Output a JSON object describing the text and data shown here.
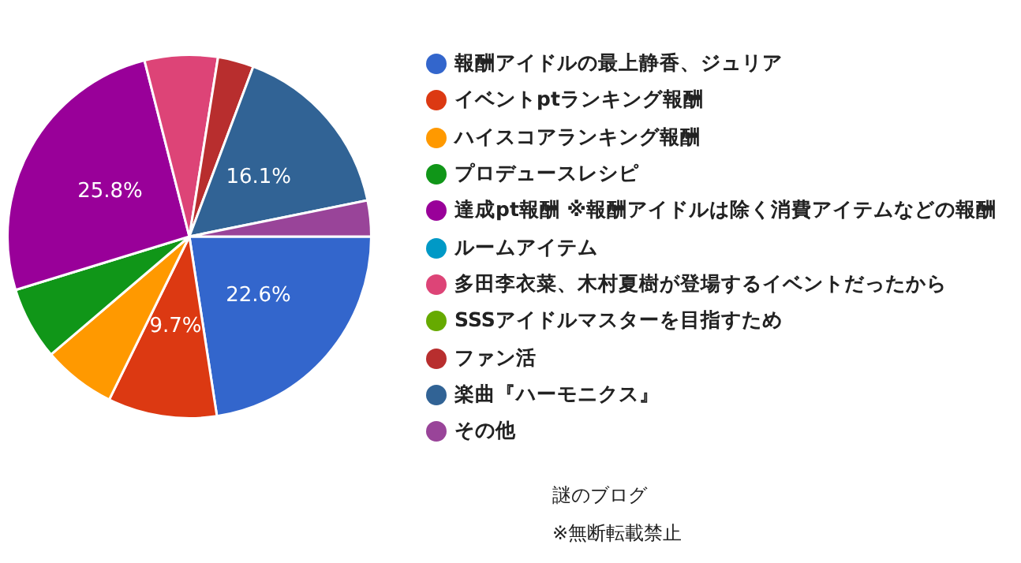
{
  "chart_data": {
    "type": "pie",
    "categories": [
      "報酬アイドルの最上静香、ジュリア",
      "イベントptランキング報酬",
      "ハイスコアランキング報酬",
      "プロデュースレシピ",
      "達成pt報酬 ※報酬アイドルは除く消費アイテムなどの報酬",
      "ルームアイテム",
      "多田李衣菜、木村夏樹が登場するイベントだったから",
      "SSSアイドルマスターを目指すため",
      "ファン活",
      "楽曲『ハーモニクス』",
      "その他"
    ],
    "values": [
      22.6,
      9.7,
      6.5,
      6.5,
      25.8,
      0,
      6.5,
      0,
      3.2,
      16.1,
      3.2
    ],
    "value_labels": [
      "22.6%",
      "9.7%",
      null,
      null,
      "25.8%",
      null,
      null,
      null,
      null,
      "16.1%",
      null
    ],
    "colors": [
      "#3366cc",
      "#dc3912",
      "#ff9900",
      "#109618",
      "#990099",
      "#0099c6",
      "#dd4477",
      "#66aa00",
      "#b82e2e",
      "#316395",
      "#994499"
    ],
    "legend": "right",
    "annotations": [
      "謎のブログ",
      "※無断転載禁止"
    ]
  }
}
